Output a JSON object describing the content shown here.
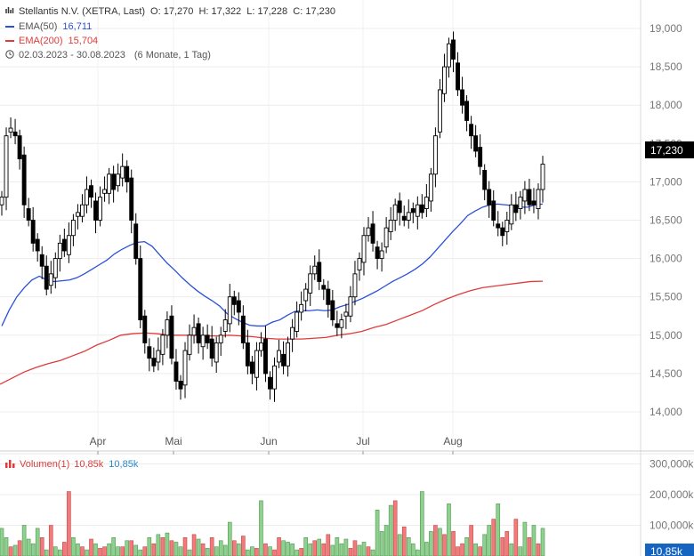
{
  "header": {
    "title": "Stellantis N.V. (XETRA, Last)",
    "ohlc": "O: 17,270  H: 17,322  L: 17,228  C: 17,230",
    "ema50_label": "EMA(50)",
    "ema50_value": "16,711",
    "ema200_label": "EMA(200)",
    "ema200_value": "15,704",
    "range": "02.03.2023 - 30.08.2023",
    "range_note": "(6 Monate, 1 Tag)"
  },
  "volume_legend": {
    "label": "Volumen(1)",
    "value_red": "10,85k",
    "value_blue": "10,85k"
  },
  "colors": {
    "ema50": "#2b4fd8",
    "ema200": "#e03a3a",
    "vol_up": "#8fcf8f",
    "vol_down": "#f07b7b",
    "price_tag": "#000000",
    "vol_tag": "#1565c0"
  },
  "chart_data": [
    {
      "type": "candlestick",
      "title": "Stellantis N.V. (XETRA, Last)",
      "x_axis": {
        "ticks": [
          "Apr",
          "Mai",
          "Jun",
          "Jul",
          "Aug"
        ]
      },
      "y_axis": {
        "ticks": [
          "19,000",
          "18,500",
          "18,000",
          "17,500",
          "17,000",
          "16,500",
          "16,000",
          "15,500",
          "15,000",
          "14,500",
          "14,000"
        ],
        "tick_values": [
          19.0,
          18.5,
          18.0,
          17.5,
          17.0,
          16.5,
          16.0,
          15.5,
          15.0,
          14.5,
          14.0
        ],
        "range": [
          13.5,
          19.3
        ]
      },
      "last_price_label": "17,230",
      "last_price": 17.23,
      "grid": true,
      "close": [
        16.8,
        17.6,
        17.7,
        17.6,
        17.3,
        16.7,
        16.5,
        16.2,
        16.1,
        15.9,
        15.6,
        15.8,
        16.0,
        16.2,
        16.1,
        16.3,
        16.5,
        16.6,
        16.7,
        16.9,
        16.8,
        16.5,
        16.8,
        16.9,
        17.1,
        16.9,
        17.1,
        17.2,
        17.0,
        16.5,
        16.0,
        15.2,
        14.9,
        14.7,
        14.6,
        14.8,
        15.0,
        15.2,
        14.7,
        14.4,
        14.3,
        14.8,
        15.0,
        15.1,
        14.9,
        15.0,
        14.9,
        14.7,
        14.9,
        15.0,
        15.2,
        15.5,
        15.4,
        15.3,
        14.9,
        14.6,
        14.5,
        14.8,
        14.9,
        14.5,
        14.3,
        14.6,
        14.8,
        14.6,
        14.9,
        15.1,
        15.3,
        15.4,
        15.6,
        15.8,
        15.9,
        15.7,
        15.6,
        15.4,
        15.2,
        15.1,
        15.2,
        15.3,
        15.5,
        15.8,
        16.0,
        16.3,
        16.4,
        16.2,
        16.0,
        16.1,
        16.4,
        16.5,
        16.7,
        16.6,
        16.5,
        16.6,
        16.6,
        16.7,
        16.6,
        16.8,
        17.1,
        17.6,
        18.2,
        18.5,
        18.8,
        18.6,
        18.2,
        18.0,
        17.8,
        17.6,
        17.4,
        17.2,
        16.9,
        16.7,
        16.5,
        16.4,
        16.3,
        16.5,
        16.7,
        16.6,
        16.8,
        16.9,
        16.7,
        16.7,
        16.9,
        17.23
      ],
      "ema50": [
        15.12,
        15.33,
        15.5,
        15.62,
        15.72,
        15.77,
        15.72,
        15.7,
        15.71,
        15.72,
        15.75,
        15.8,
        15.86,
        15.92,
        15.98,
        16.06,
        16.12,
        16.17,
        16.21,
        16.22,
        16.16,
        16.05,
        15.94,
        15.85,
        15.75,
        15.66,
        15.58,
        15.51,
        15.45,
        15.38,
        15.28,
        15.22,
        15.17,
        15.13,
        15.12,
        15.12,
        15.17,
        15.2,
        15.26,
        15.31,
        15.32,
        15.32,
        15.33,
        15.32,
        15.33,
        15.37,
        15.4,
        15.44,
        15.48,
        15.53,
        15.58,
        15.64,
        15.7,
        15.75,
        15.8,
        15.86,
        15.93,
        16.02,
        16.13,
        16.24,
        16.35,
        16.45,
        16.56,
        16.62,
        16.67,
        16.7,
        16.71,
        16.7,
        16.69,
        16.67,
        16.67,
        16.7,
        16.71
      ],
      "ema200": [
        14.36,
        14.44,
        14.52,
        14.58,
        14.63,
        14.67,
        14.73,
        14.79,
        14.87,
        14.93,
        15.0,
        15.02,
        15.03,
        15.02,
        15.0,
        15.0,
        15.0,
        14.99,
        14.99,
        15.0,
        14.99,
        14.98,
        14.96,
        14.95,
        14.95,
        14.95,
        14.96,
        14.97,
        15.0,
        15.02,
        15.05,
        15.1,
        15.14,
        15.2,
        15.26,
        15.32,
        15.4,
        15.47,
        15.53,
        15.58,
        15.62,
        15.64,
        15.66,
        15.68,
        15.7,
        15.704
      ],
      "ema200_start_index": 77
    },
    {
      "type": "bar",
      "title": "Volumen(1)",
      "y_axis": {
        "ticks": [
          "300,000k",
          "200,000k",
          "100,000k"
        ],
        "tick_values": [
          300,
          200,
          100
        ],
        "range": [
          0,
          320
        ]
      },
      "last_value_label": "10,85k",
      "values": [
        90,
        60,
        30,
        35,
        50,
        100,
        55,
        40,
        90,
        60,
        20,
        100,
        30,
        20,
        45,
        210,
        60,
        40,
        30,
        20,
        55,
        40,
        25,
        30,
        40,
        60,
        30,
        30,
        50,
        50,
        35,
        20,
        30,
        60,
        40,
        70,
        60,
        75,
        50,
        45,
        30,
        60,
        20,
        70,
        55,
        40,
        25,
        60,
        30,
        50,
        35,
        110,
        50,
        40,
        65,
        20,
        30,
        25,
        180,
        40,
        30,
        20,
        60,
        50,
        45,
        40,
        20,
        25,
        60,
        40,
        50,
        55,
        40,
        70,
        35,
        60,
        40,
        55,
        25,
        50,
        35,
        45,
        30,
        20,
        150,
        80,
        100,
        165,
        180,
        70,
        95,
        60,
        40,
        20,
        210,
        45,
        80,
        100,
        90,
        70,
        170,
        80,
        30,
        40,
        60,
        100,
        40,
        30,
        70,
        100,
        120,
        170,
        60,
        80,
        40,
        120,
        30,
        110,
        60,
        100,
        40,
        90
      ],
      "up": [
        true,
        true,
        false,
        true,
        false,
        true,
        true,
        true,
        true,
        false,
        true,
        false,
        true,
        true,
        false,
        false,
        true,
        true,
        false,
        true,
        false,
        true,
        false,
        false,
        true,
        true,
        true,
        false,
        true,
        false,
        true,
        true,
        false,
        true,
        false,
        true,
        false,
        true,
        false,
        true,
        true,
        false,
        true,
        false,
        true,
        false,
        true,
        false,
        true,
        true,
        true,
        true,
        false,
        true,
        false,
        true,
        true,
        false,
        true,
        false,
        true,
        false,
        false,
        true,
        true,
        true,
        true,
        false,
        true,
        true,
        false,
        true,
        false,
        false,
        true,
        true,
        true,
        true,
        false,
        false,
        true,
        true,
        false,
        true,
        true,
        true,
        true,
        true,
        false,
        true,
        false,
        true,
        true,
        true,
        true,
        true,
        true,
        false,
        true,
        false,
        true,
        false,
        false,
        false,
        true,
        false,
        true,
        false,
        true,
        true,
        false,
        true,
        false,
        false,
        true,
        false,
        true,
        true,
        false,
        true,
        false,
        true
      ]
    }
  ]
}
